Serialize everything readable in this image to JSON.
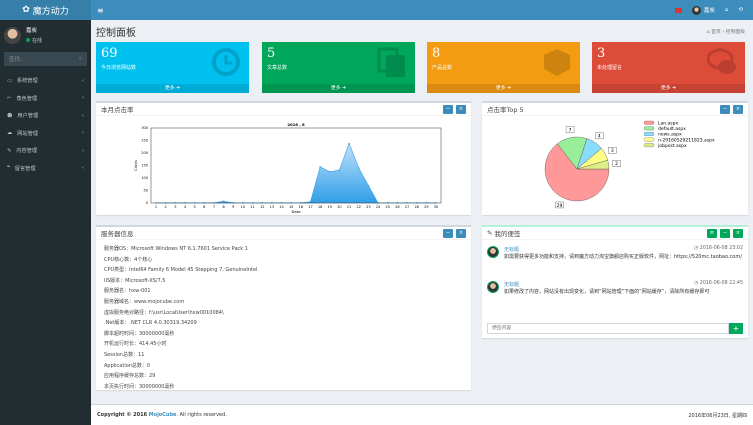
{
  "app": {
    "title": "魔方动力",
    "menu_icon": "hamburger-icon"
  },
  "topbar": {
    "user": "嘉炭",
    "icons": [
      "flag-icon",
      "home-icon",
      "logout-icon"
    ]
  },
  "sidebar": {
    "user": {
      "name": "嘉炭",
      "status": "在线"
    },
    "search_placeholder": "查找...",
    "items": [
      {
        "label": "系统管理",
        "icon": "monitor-icon"
      },
      {
        "label": "角色管理",
        "icon": "role-icon"
      },
      {
        "label": "用户管理",
        "icon": "users-icon"
      },
      {
        "label": "网站管理",
        "icon": "cloud-icon"
      },
      {
        "label": "内容管理",
        "icon": "edit-icon"
      },
      {
        "label": "留言管理",
        "icon": "comments-icon"
      }
    ]
  },
  "page": {
    "title": "控制面板",
    "breadcrumb": [
      "首页",
      "控制面板"
    ]
  },
  "boxes": [
    {
      "value": "69",
      "label": "今日浏览网站数",
      "more": "更多",
      "color": "#00c0ef",
      "icon": "clock-icon"
    },
    {
      "value": "5",
      "label": "文章总数",
      "more": "更多",
      "color": "#00a65a",
      "icon": "files-icon"
    },
    {
      "value": "8",
      "label": "产品总数",
      "more": "更多",
      "color": "#f39c12",
      "icon": "cube-icon"
    },
    {
      "value": "3",
      "label": "未处理留言",
      "more": "更多",
      "color": "#dd4b39",
      "icon": "comments-icon"
    }
  ],
  "chart_panel": {
    "title": "本月点击率"
  },
  "pie_panel": {
    "title": "点击率Top 5"
  },
  "chart_data": [
    {
      "type": "area",
      "title": "2016 , 6",
      "xlabel": "Date",
      "ylabel": "Clicks",
      "ylim": [
        0,
        300
      ],
      "yticks": [
        0,
        50,
        100,
        150,
        200,
        250,
        300
      ],
      "x": [
        1,
        2,
        3,
        4,
        5,
        6,
        7,
        8,
        9,
        10,
        11,
        12,
        13,
        14,
        15,
        16,
        17,
        18,
        19,
        20,
        21,
        22,
        23,
        24,
        25,
        26,
        27,
        28,
        29,
        30
      ],
      "values": [
        1,
        1,
        1,
        1,
        1,
        1,
        1,
        7,
        1,
        1,
        1,
        1,
        1,
        1,
        1,
        1,
        5,
        145,
        125,
        132,
        238,
        140,
        70,
        0,
        1,
        1,
        1,
        1,
        1,
        1
      ],
      "color": "#4fb3f0",
      "grid": false
    },
    {
      "type": "pie",
      "legend": "top-right",
      "slices": [
        {
          "name": "Lan.aspx",
          "value": 29,
          "color": "#f99"
        },
        {
          "name": "default.aspx",
          "value": 7,
          "color": "#9e9"
        },
        {
          "name": "news.aspx",
          "value": 4,
          "color": "#8df"
        },
        {
          "name": "n-20160529211823.aspx",
          "value": 3,
          "color": "#ff8"
        },
        {
          "name": "jobpost.aspx",
          "value": 2,
          "color": "#de8"
        }
      ]
    }
  ],
  "server": {
    "title": "服务器信息",
    "lines": [
      "服务器OS：Microsoft Windows NT 6.1.7601 Service Pack 1",
      "CPU核心数：4个核心",
      "CPU类型：Intel64 Family 6 Model 45 Stepping 7, GenuineIntel",
      "IIS版本：Microsoft-IIS/7.5",
      "服务器名：hxw-001",
      "服务器域名：www.mojocube.com",
      "虚拟服务绝对路径：f:\\usr\\LocalUser\\hxw0010084\\",
      ".Net版本：.NET CLR 4.0.30319.34209",
      "脚本超时时间：30000000毫秒",
      "开机运行时长：414.45小时",
      "Session总数：11",
      "Application总数：0",
      "应用程序缓存总数：29",
      "本页执行时间：30000000毫秒"
    ]
  },
  "notes": {
    "title": "我的便签",
    "placeholder": "便签内容",
    "items": [
      {
        "title": "无标题",
        "time": "2016-06-08 23:02",
        "body": "如需要获得更多功能和支持，请到魔方动力淘宝旗舰店购买正版软件，网址：https://520mc.taobao.com/"
      },
      {
        "title": "无标题",
        "time": "2016-06-08 22:45",
        "body": "如果修改了内容，网站没有出现变化，请到“网站管理”下面的“网站缓存”，清除所有缓存即可"
      }
    ]
  },
  "footer": {
    "copyright": "Copyright © 2016",
    "brand": "MojoCube",
    "rights": ". All rights reserved.",
    "date": "2016年06月23日, 星期四"
  }
}
